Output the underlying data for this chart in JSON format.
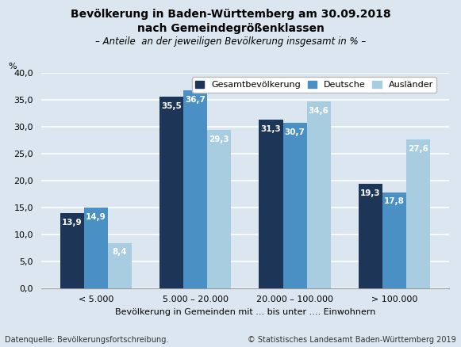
{
  "title_line1": "Bevölkerung in Baden-Württemberg am 30.09.2018",
  "title_line2": "nach Gemeindegrößenklassen",
  "subtitle": "– Anteile  an der jeweiligen Bevölkerung insgesamt in % –",
  "ylabel": "%",
  "xlabel": "Bevölkerung in Gemeinden mit ... bis unter .... Einwohnern",
  "source_left": "Datenquelle: Bevölkerungsfortschreibung.",
  "source_right": "© Statistisches Landesamt Baden-Württemberg 2019",
  "categories": [
    "< 5.000",
    "5.000 – 20.000",
    "20.000 – 100.000",
    "> 100.000"
  ],
  "series": {
    "Gesamtbevölkerung": [
      13.9,
      35.5,
      31.3,
      19.3
    ],
    "Deutsche": [
      14.9,
      36.7,
      30.7,
      17.8
    ],
    "Ausländer": [
      8.4,
      29.3,
      34.6,
      27.6
    ]
  },
  "colors": {
    "Gesamtbevölkerung": "#1d3557",
    "Deutsche": "#4a90c4",
    "Ausländer": "#a8cce0"
  },
  "ylim": [
    0,
    40
  ],
  "yticks": [
    0,
    5,
    10,
    15,
    20,
    25,
    30,
    35,
    40
  ],
  "ytick_labels": [
    "0,0",
    "5,0",
    "10,0",
    "15,0",
    "20,0",
    "25,0",
    "30,0",
    "35,0",
    "40,0"
  ],
  "bar_width": 0.24,
  "background_color": "#dce6f0",
  "plot_bg_color": "#dce6f0",
  "grid_color": "#ffffff",
  "title_fontsize": 10,
  "subtitle_fontsize": 8.5,
  "label_fontsize": 8,
  "tick_fontsize": 8,
  "legend_fontsize": 8,
  "value_fontsize": 7.5
}
